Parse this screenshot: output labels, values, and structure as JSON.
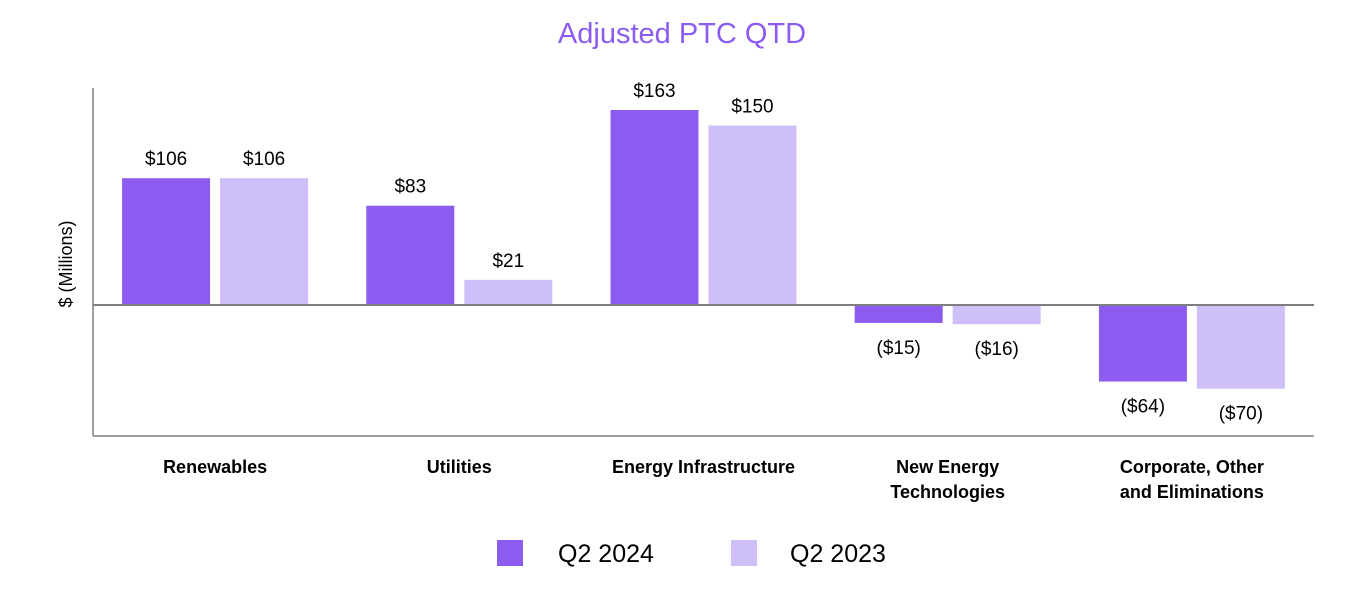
{
  "chart_data": {
    "type": "bar",
    "title": "Adjusted PTC QTD",
    "ylabel": "$ (Millions)",
    "xlabel": "",
    "categories": [
      [
        "Renewables"
      ],
      [
        "Utilities"
      ],
      [
        "Energy Infrastructure"
      ],
      [
        "New Energy",
        "Technologies"
      ],
      [
        "Corporate, Other",
        "and Eliminations"
      ]
    ],
    "series": [
      {
        "name": "Q2 2024",
        "color": "#8c5cf0",
        "values": [
          106,
          83,
          163,
          -15,
          -64
        ],
        "labels": [
          "$106",
          "$83",
          "$163",
          "($15)",
          "($64)"
        ]
      },
      {
        "name": "Q2 2023",
        "color": "#cfbff8",
        "values": [
          106,
          21,
          150,
          -16,
          -70
        ],
        "labels": [
          "$106",
          "$21",
          "$150",
          "($16)",
          "($70)"
        ]
      }
    ],
    "ylim": [
      -109,
      178
    ],
    "grid": false,
    "legend": "bottom-center",
    "colors": {
      "title": "#8c5cf0",
      "axis": "#7f7f7f"
    }
  }
}
